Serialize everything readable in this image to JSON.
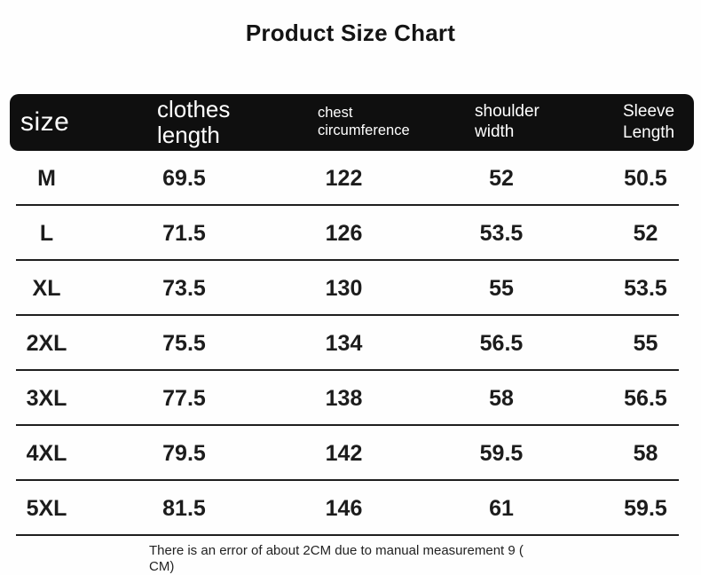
{
  "title": "Product Size Chart",
  "table": {
    "columns": [
      {
        "key": "size",
        "label": "size"
      },
      {
        "key": "clothes_length",
        "label": "clothes length"
      },
      {
        "key": "chest",
        "label": "chest circumference"
      },
      {
        "key": "shoulder",
        "label": "shoulder width"
      },
      {
        "key": "sleeve",
        "label": "Sleeve Length"
      }
    ],
    "rows": [
      {
        "size": "M",
        "clothes_length": "69.5",
        "chest": "122",
        "shoulder": "52",
        "sleeve": "50.5"
      },
      {
        "size": "L",
        "clothes_length": "71.5",
        "chest": "126",
        "shoulder": "53.5",
        "sleeve": "52"
      },
      {
        "size": "XL",
        "clothes_length": "73.5",
        "chest": "130",
        "shoulder": "55",
        "sleeve": "53.5"
      },
      {
        "size": "2XL",
        "clothes_length": "75.5",
        "chest": "134",
        "shoulder": "56.5",
        "sleeve": "55"
      },
      {
        "size": "3XL",
        "clothes_length": "77.5",
        "chest": "138",
        "shoulder": "58",
        "sleeve": "56.5"
      },
      {
        "size": "4XL",
        "clothes_length": "79.5",
        "chest": "142",
        "shoulder": "59.5",
        "sleeve": "58"
      },
      {
        "size": "5XL",
        "clothes_length": "81.5",
        "chest": "146",
        "shoulder": "61",
        "sleeve": "59.5"
      }
    ]
  },
  "footer": {
    "line1": "There is an error of about 2CM due to manual measurement 9 (",
    "line2": "CM)"
  },
  "colors": {
    "header_background": "#0f0f0f",
    "header_text": "#ffffff",
    "body_text": "#1c1c1c",
    "divider": "#1f1f1f",
    "page_background": "#fefefe"
  }
}
